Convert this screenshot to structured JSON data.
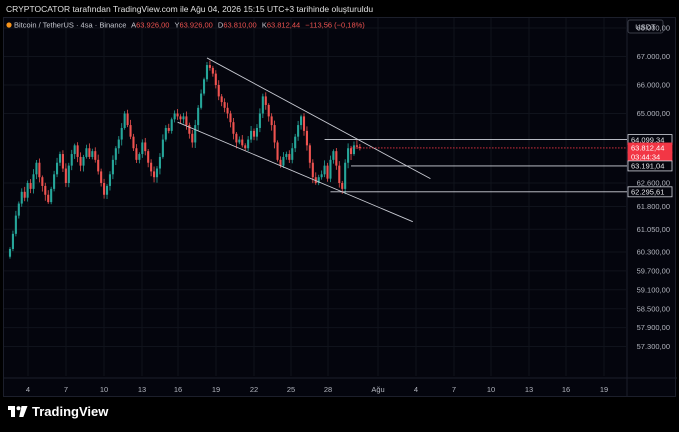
{
  "caption": "CRYPTOCATOR tarafından TradingView.com ile Ağu 04, 2026 15:15 UTC+3 tarihinde oluşturuldu",
  "legend": {
    "symbol": "Bitcoin / TetherUS · 4sa · Binance",
    "o_label": "A",
    "o_value": "63.926,00",
    "h_label": "Y",
    "h_value": "63.926,00",
    "l_label": "D",
    "l_value": "63.810,00",
    "c_label": "K",
    "c_value": "63.812,44",
    "change": "−113,56 (−0,18%)"
  },
  "currency": "USDT",
  "brand": "TradingView",
  "colors": {
    "up": "#26a69a",
    "down": "#ef5350",
    "price_tag": "#f23645",
    "background": "#04050d",
    "trendline": "#c9cbd3"
  },
  "chart_data": {
    "type": "candlestick",
    "price_axis_ticks": [
      "68.000,00",
      "67.000,00",
      "66.000,00",
      "65.000,00",
      "62.600,00",
      "61.800,00",
      "61.050,00",
      "60.300,00",
      "59.700,00",
      "59.100,00",
      "58.500,00",
      "57.900,00",
      "57.300,00"
    ],
    "time_axis_ticks": [
      "4",
      "7",
      "10",
      "13",
      "16",
      "19",
      "22",
      "25",
      "28",
      "Ağu",
      "4",
      "7",
      "10",
      "13",
      "16",
      "19"
    ],
    "price_labels": [
      {
        "text": "64.099,34",
        "style": "outline"
      },
      {
        "text": "63.812,44",
        "style": "current"
      },
      {
        "text": "03:44:34",
        "style": "countdown"
      },
      {
        "text": "63.191,04",
        "style": "outline"
      },
      {
        "text": "62.295,61",
        "style": "outline"
      }
    ],
    "closes": [
      60.4,
      60.9,
      61.5,
      61.9,
      62.3,
      62.1,
      62.6,
      62.4,
      62.9,
      63.3,
      62.8,
      62.5,
      62.2,
      61.95,
      62.4,
      62.9,
      63.3,
      63.6,
      63.1,
      62.6,
      63.2,
      63.6,
      63.9,
      63.5,
      63.2,
      63.5,
      63.8,
      63.5,
      63.7,
      63.4,
      63.0,
      62.6,
      62.2,
      62.5,
      62.9,
      63.4,
      63.8,
      64.1,
      64.5,
      65.0,
      64.6,
      64.2,
      63.8,
      63.4,
      63.6,
      64.0,
      63.7,
      63.3,
      63.0,
      62.8,
      63.1,
      63.5,
      64.1,
      64.5,
      64.4,
      64.8,
      65.0,
      64.9,
      64.8,
      64.9,
      64.6,
      64.3,
      64.0,
      64.6,
      65.2,
      65.7,
      66.2,
      66.7,
      66.6,
      66.4,
      66.0,
      65.6,
      65.4,
      65.2,
      65.0,
      64.7,
      64.3,
      64.0,
      64.1,
      63.9,
      63.8,
      64.1,
      64.4,
      64.2,
      64.5,
      65.0,
      65.6,
      65.3,
      64.9,
      64.6,
      64.0,
      63.4,
      63.2,
      63.5,
      63.6,
      63.4,
      63.8,
      64.2,
      64.6,
      64.9,
      64.4,
      63.9,
      63.3,
      62.8,
      62.6,
      62.8,
      62.9,
      63.2,
      62.75,
      63.4,
      63.7,
      63.2,
      62.6,
      62.4,
      63.3,
      63.8,
      63.6,
      63.9,
      63.85,
      63.81
    ],
    "channel": {
      "upper": {
        "from": {
          "candle": 67,
          "price": 66.95
        },
        "to": {
          "candle": 143,
          "price": 62.75
        }
      },
      "lower": {
        "from": {
          "candle": 57,
          "price": 64.7
        },
        "to": {
          "candle": 137,
          "price": 61.3
        }
      },
      "levels": [
        64.1,
        63.81,
        63.19,
        62.3
      ]
    }
  }
}
